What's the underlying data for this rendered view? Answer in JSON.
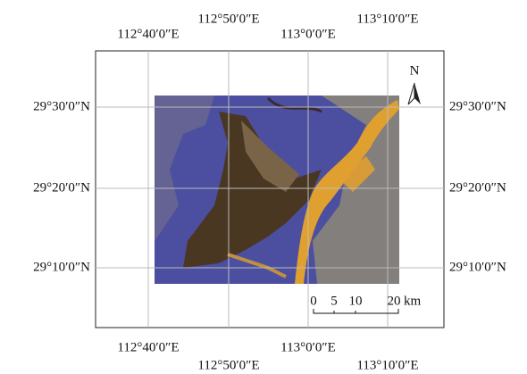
{
  "graticule": {
    "top": [
      "112°40′0″E",
      "112°50′0″E",
      "113°0′0″E",
      "113°10′0″E"
    ],
    "bottom": [
      "112°40′0″E",
      "112°50′0″E",
      "113°0′0″E",
      "113°10′0″E"
    ],
    "left": [
      "29°30′0″N",
      "29°20′0″N",
      "29°10′0″N"
    ],
    "right": [
      "29°30′0″N",
      "29°20′0″N",
      "29°10′0″N"
    ]
  },
  "north_arrow": {
    "label": "N"
  },
  "scale_bar": {
    "labels": [
      "0",
      "5",
      "10",
      "20"
    ],
    "unit": "km"
  }
}
